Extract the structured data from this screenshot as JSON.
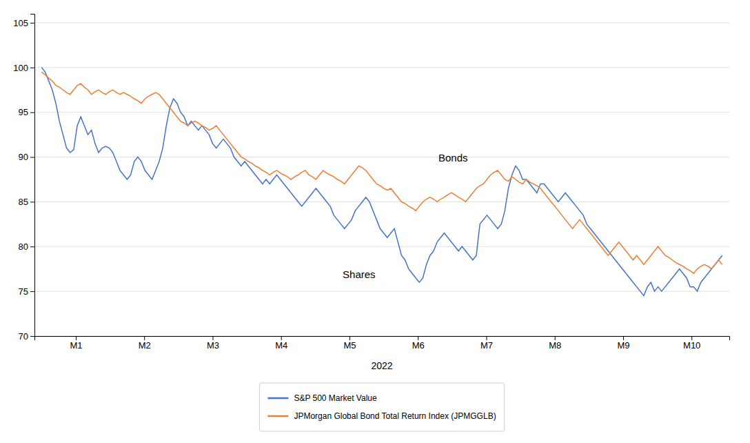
{
  "chart_data": {
    "type": "line",
    "x_label": "2022",
    "x": [
      0,
      1,
      2,
      3,
      4,
      5,
      6,
      7,
      8,
      9,
      10,
      11,
      12,
      13,
      14,
      15,
      16,
      17,
      18,
      19,
      20,
      21,
      22,
      23,
      24,
      25,
      26,
      27,
      28,
      29,
      30,
      31,
      32,
      33,
      34,
      35,
      36,
      37,
      38,
      39,
      40,
      41,
      42,
      43,
      44,
      45,
      46,
      47,
      48,
      49,
      50,
      51,
      52,
      53,
      54,
      55,
      56,
      57,
      58,
      59,
      60,
      61,
      62,
      63,
      64,
      65,
      66,
      67,
      68,
      69,
      70,
      71,
      72,
      73,
      74,
      75,
      76,
      77,
      78,
      79,
      80,
      81,
      82,
      83,
      84,
      85,
      86,
      87,
      88,
      89,
      90,
      91,
      92,
      93,
      94,
      95,
      96,
      97,
      98,
      99,
      100,
      101,
      102,
      103,
      104,
      105,
      106,
      107,
      108,
      109,
      110,
      111,
      112,
      113,
      114,
      115,
      116,
      117,
      118,
      119,
      120,
      121,
      122,
      123,
      124,
      125,
      126,
      127,
      128,
      129,
      130,
      131,
      132,
      133,
      134,
      135,
      136,
      137,
      138,
      139,
      140,
      141,
      142,
      143,
      144,
      145,
      146,
      147,
      148,
      149,
      150,
      151,
      152,
      153,
      154,
      155,
      156,
      157,
      158,
      159,
      160,
      161,
      162,
      163,
      164,
      165,
      166,
      167,
      168,
      169,
      170,
      171,
      172,
      173,
      174,
      175,
      176,
      177,
      178,
      179,
      180,
      181,
      182,
      183,
      184,
      185,
      186,
      187,
      188,
      189,
      190,
      191
    ],
    "series": [
      {
        "name": "S&P 500 Market Value",
        "color": "#4472C4",
        "values": [
          100.0,
          99.5,
          98.5,
          97.5,
          96.0,
          94.0,
          92.5,
          91.0,
          90.5,
          90.8,
          93.5,
          94.5,
          93.5,
          92.5,
          93.0,
          91.5,
          90.5,
          91.0,
          91.2,
          91.0,
          90.5,
          89.5,
          88.5,
          88.0,
          87.5,
          88.0,
          89.5,
          90.0,
          89.5,
          88.5,
          88.0,
          87.5,
          88.5,
          89.5,
          91.0,
          93.5,
          95.5,
          96.5,
          96.0,
          95.0,
          94.5,
          93.5,
          94.0,
          93.5,
          93.0,
          93.5,
          93.0,
          92.5,
          91.5,
          91.0,
          91.5,
          92.0,
          91.5,
          91.0,
          90.0,
          89.5,
          89.0,
          89.5,
          89.0,
          88.5,
          88.0,
          87.5,
          87.0,
          87.5,
          87.0,
          87.5,
          88.0,
          87.5,
          87.0,
          86.5,
          86.0,
          85.5,
          85.0,
          84.5,
          85.0,
          85.5,
          86.0,
          86.5,
          86.0,
          85.5,
          85.0,
          84.5,
          83.5,
          83.0,
          82.5,
          82.0,
          82.5,
          83.0,
          84.0,
          84.5,
          85.0,
          85.5,
          85.0,
          84.0,
          83.0,
          82.0,
          81.5,
          81.0,
          81.5,
          82.0,
          80.5,
          79.0,
          78.5,
          77.5,
          77.0,
          76.5,
          76.0,
          76.5,
          78.0,
          79.0,
          79.5,
          80.5,
          81.0,
          81.5,
          81.0,
          80.5,
          80.0,
          79.5,
          80.0,
          79.5,
          79.0,
          78.5,
          79.0,
          82.5,
          83.0,
          83.5,
          83.0,
          82.5,
          82.0,
          82.5,
          84.0,
          86.5,
          88.0,
          89.0,
          88.5,
          87.5,
          87.5,
          87.0,
          86.5,
          86.0,
          87.0,
          87.0,
          86.5,
          86.0,
          85.5,
          85.0,
          85.5,
          86.0,
          85.5,
          85.0,
          84.5,
          84.0,
          83.5,
          82.5,
          82.0,
          81.5,
          81.0,
          80.5,
          80.0,
          79.5,
          79.0,
          78.5,
          78.0,
          77.5,
          77.0,
          76.5,
          76.0,
          75.5,
          75.0,
          74.5,
          75.5,
          76.0,
          75.0,
          75.5,
          75.0,
          75.5,
          76.0,
          76.5,
          77.0,
          77.5,
          77.0,
          76.5,
          75.5,
          75.5,
          75.0,
          76.0,
          76.5,
          77.0,
          77.5,
          78.0,
          78.5,
          79.0
        ]
      },
      {
        "name": "JPMorgan Global Bond Total Return Index (JPMGGLB)",
        "color": "#ED7D31",
        "values": [
          99.5,
          99.2,
          98.8,
          98.5,
          98.0,
          97.8,
          97.5,
          97.2,
          97.0,
          97.5,
          98.0,
          98.2,
          97.8,
          97.5,
          97.0,
          97.3,
          97.5,
          97.2,
          97.0,
          97.3,
          97.5,
          97.2,
          97.0,
          97.2,
          97.0,
          96.8,
          96.5,
          96.3,
          96.0,
          96.5,
          96.8,
          97.0,
          97.2,
          97.0,
          96.5,
          96.0,
          95.5,
          95.0,
          94.5,
          94.0,
          93.8,
          93.5,
          93.8,
          94.0,
          93.8,
          93.5,
          93.3,
          93.0,
          93.2,
          93.5,
          93.0,
          92.5,
          92.0,
          91.5,
          91.0,
          90.5,
          90.0,
          89.8,
          89.5,
          89.3,
          89.0,
          88.8,
          88.5,
          88.3,
          88.0,
          88.3,
          88.5,
          88.2,
          88.0,
          87.8,
          87.5,
          87.8,
          88.0,
          88.3,
          88.5,
          88.0,
          87.8,
          87.5,
          88.0,
          88.5,
          88.2,
          88.0,
          87.8,
          87.5,
          87.3,
          87.0,
          87.5,
          88.0,
          88.5,
          89.0,
          88.8,
          88.5,
          88.0,
          87.5,
          87.0,
          86.8,
          86.5,
          86.3,
          86.5,
          86.0,
          85.5,
          85.0,
          84.8,
          84.5,
          84.3,
          84.0,
          84.5,
          85.0,
          85.3,
          85.5,
          85.3,
          85.0,
          85.3,
          85.5,
          85.8,
          86.0,
          85.8,
          85.5,
          85.3,
          85.0,
          85.5,
          86.0,
          86.5,
          86.8,
          87.0,
          87.5,
          88.0,
          88.3,
          88.5,
          88.0,
          87.5,
          87.3,
          87.8,
          87.5,
          87.2,
          87.0,
          87.5,
          87.2,
          87.0,
          86.8,
          86.5,
          86.0,
          85.5,
          85.0,
          84.5,
          84.0,
          83.5,
          83.0,
          82.5,
          82.0,
          82.5,
          83.0,
          82.5,
          82.0,
          81.5,
          81.0,
          80.5,
          80.0,
          79.5,
          79.0,
          79.5,
          80.0,
          80.5,
          80.0,
          79.5,
          79.0,
          78.5,
          79.0,
          78.5,
          78.0,
          78.5,
          79.0,
          79.5,
          80.0,
          79.5,
          79.0,
          78.8,
          78.5,
          78.2,
          78.0,
          77.8,
          77.5,
          77.3,
          77.0,
          77.5,
          77.8,
          78.0,
          77.8,
          77.5,
          78.0,
          78.5,
          78.0
        ]
      }
    ],
    "xlim": [
      -2,
      193
    ],
    "xticks": [
      {
        "value": 9.6,
        "label": "M1"
      },
      {
        "value": 28.8,
        "label": "M2"
      },
      {
        "value": 48,
        "label": "M3"
      },
      {
        "value": 67.2,
        "label": "M4"
      },
      {
        "value": 86.4,
        "label": "M5"
      },
      {
        "value": 105.6,
        "label": "M6"
      },
      {
        "value": 124.8,
        "label": "M7"
      },
      {
        "value": 144,
        "label": "M8"
      },
      {
        "value": 163.2,
        "label": "M9"
      },
      {
        "value": 182.4,
        "label": "M10"
      }
    ],
    "ylim": [
      70,
      106
    ],
    "yticks": [
      70,
      75,
      80,
      85,
      90,
      95,
      100,
      105
    ],
    "annotations": [
      {
        "text": "Shares",
        "x": 84.48,
        "y": 76.5
      },
      {
        "text": "Bonds",
        "x": 111.36,
        "y": 89.5
      }
    ],
    "grid": true,
    "legend": "bottom"
  }
}
